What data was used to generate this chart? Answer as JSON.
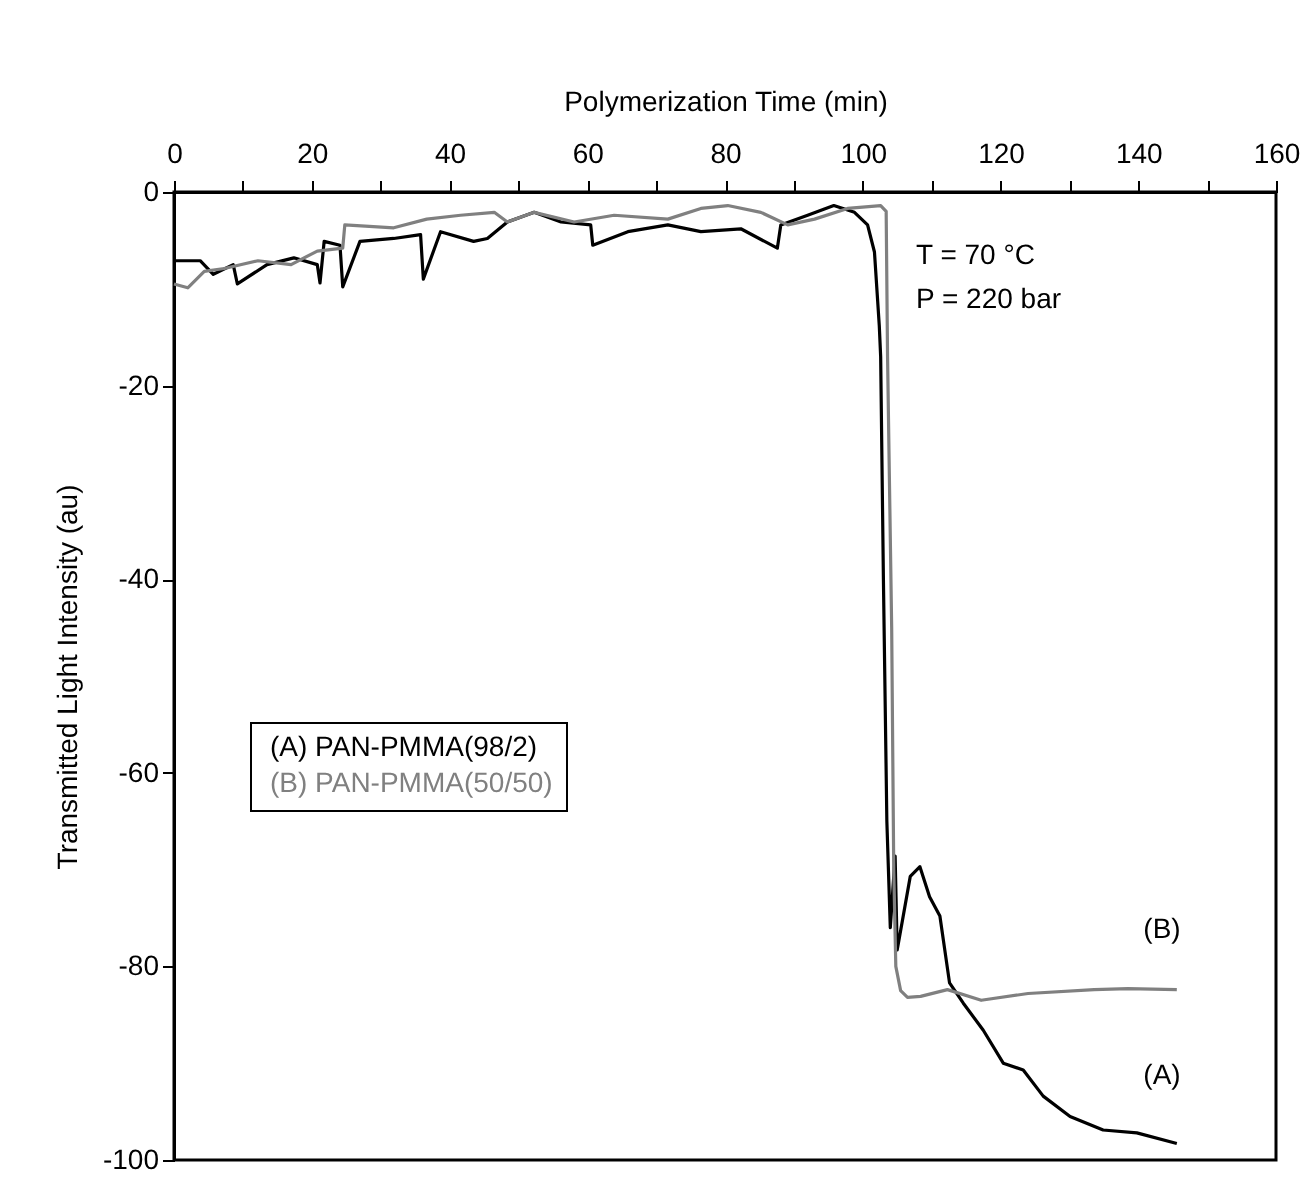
{
  "chart_data": {
    "type": "line",
    "xlabel": "Polymerization Time (min)",
    "ylabel": "Transmitted Light Intensity (au)",
    "xlim": [
      0,
      160
    ],
    "ylim": [
      -100,
      0
    ],
    "xticks": [
      0,
      {
        "value": 10,
        "label": null
      },
      20,
      {
        "value": 30,
        "label": null
      },
      40,
      {
        "value": 50,
        "label": null
      },
      60,
      {
        "value": 70,
        "label": null
      },
      80,
      {
        "value": 90,
        "label": null
      },
      100,
      {
        "value": 110,
        "label": null
      },
      120,
      {
        "value": 130,
        "label": null
      },
      140,
      {
        "value": 150,
        "label": null
      },
      160
    ],
    "yticks": [
      -100,
      -80,
      -60,
      -40,
      -20,
      0
    ],
    "legend": "left",
    "grid": false,
    "marker": "none",
    "line_style": "solid",
    "series": [
      {
        "name": "(A) PAN-PMMA(98/2)",
        "color": "#000000",
        "x": [
          0.1,
          3.8,
          5.7,
          8.6,
          9.2,
          13.5,
          17.4,
          20.8,
          21.2,
          21.8,
          24.1,
          24.5,
          27,
          31.9,
          35.8,
          36.2,
          38.7,
          43.5,
          45.5,
          48.4,
          52.3,
          56.2,
          60.5,
          60.8,
          65.9,
          71.7,
          76.5,
          82.3,
          87.6,
          88.1,
          92,
          95.8,
          98.8,
          100.7,
          101.7,
          102.4,
          102.6,
          103,
          103.5,
          104,
          104.7,
          105,
          106.9,
          108.3,
          109.7,
          111.2,
          112.6,
          114.6,
          117.5,
          120.4,
          123.3,
          126.2,
          130.1,
          134.9,
          139.8,
          145.6
        ],
        "values": [
          -7.1,
          -7.1,
          -8.5,
          -7.5,
          -9.5,
          -7.5,
          -6.8,
          -7.5,
          -9.4,
          -5.1,
          -5.5,
          -9.8,
          -5.1,
          -4.8,
          -4.4,
          -9,
          -4.1,
          -5.1,
          -4.8,
          -3.1,
          -2.1,
          -3.1,
          -3.4,
          -5.5,
          -4.1,
          -3.4,
          -4.1,
          -3.8,
          -5.8,
          -3.4,
          -2.4,
          -1.4,
          -2.1,
          -3.4,
          -6.2,
          -13.8,
          -17,
          -40,
          -65,
          -76,
          -68.6,
          -78.3,
          -70.7,
          -69.7,
          -72.8,
          -74.8,
          -81.7,
          -83.8,
          -86.6,
          -90,
          -90.7,
          -93.4,
          -95.5,
          -96.9,
          -97.2,
          -98.3
        ]
      },
      {
        "name": "(B) PAN-PMMA(50/50)",
        "color": "#808080",
        "x": [
          0,
          2,
          4.4,
          7.3,
          12.2,
          17,
          20.8,
          24.5,
          24.8,
          31.9,
          36.7,
          41.6,
          46.5,
          48.4,
          52.3,
          58.1,
          63.9,
          71.7,
          76.5,
          80.4,
          85.2,
          89.1,
          93,
          97.8,
          102.6,
          103.4,
          103.6,
          104.2,
          104.5,
          104.8,
          105.5,
          106.5,
          108.4,
          112.3,
          117.2,
          124,
          133.6,
          138.5,
          145.6
        ],
        "values": [
          -9.5,
          -9.9,
          -8.2,
          -7.9,
          -7.1,
          -7.5,
          -6.1,
          -5.8,
          -3.4,
          -3.7,
          -2.8,
          -2.4,
          -2.1,
          -3.1,
          -2.1,
          -3.1,
          -2.4,
          -2.8,
          -1.7,
          -1.4,
          -2.1,
          -3.4,
          -2.8,
          -1.7,
          -1.4,
          -2,
          -17,
          -45,
          -70,
          -80,
          -82.5,
          -83.2,
          -83.1,
          -82.4,
          -83.5,
          -82.8,
          -82.4,
          -82.3,
          -82.4
        ]
      }
    ],
    "annotations": [
      "T = 70 °C",
      "P = 220 bar",
      "(B)",
      "(A)"
    ]
  }
}
